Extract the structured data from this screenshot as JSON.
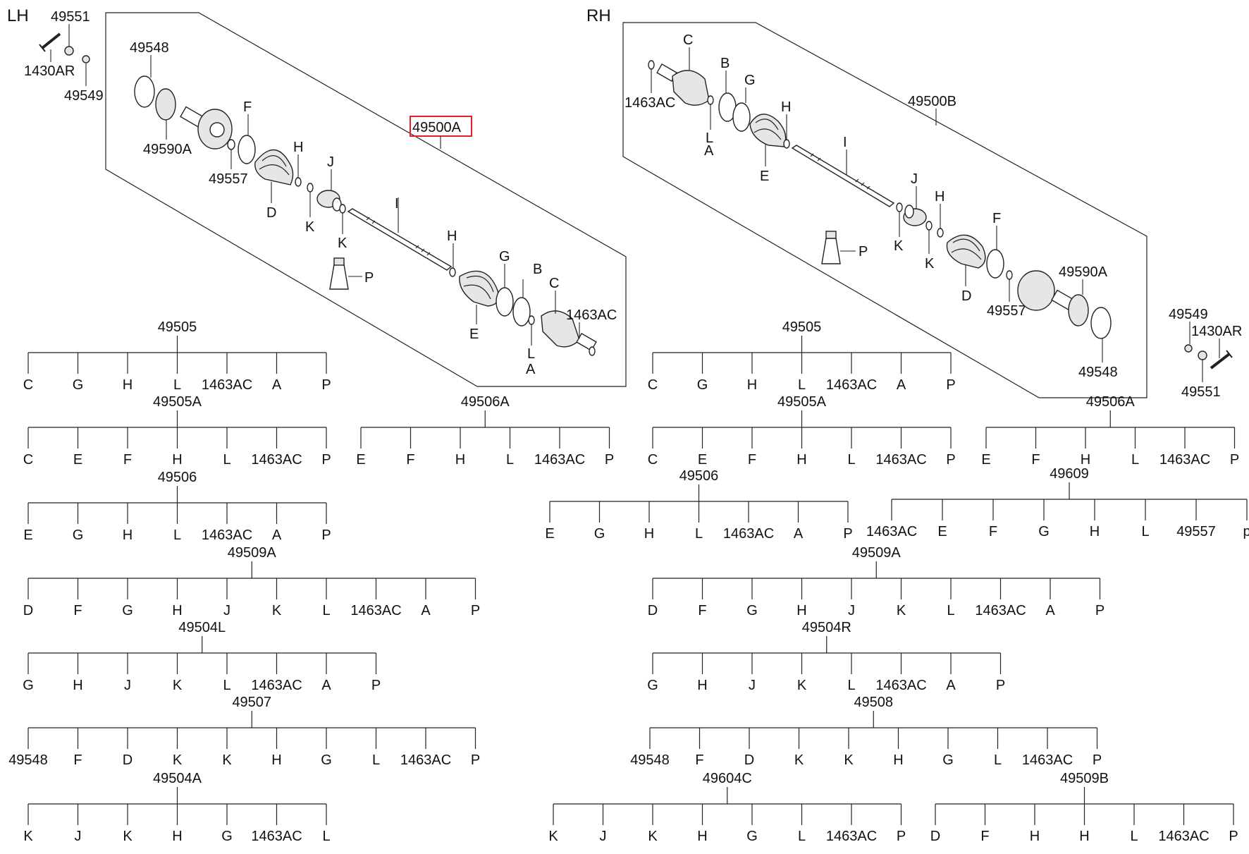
{
  "sides": {
    "lh": {
      "label": "LH",
      "assembly": "49500A",
      "callouts": [
        "49551",
        "1430AR",
        "49549",
        "49548",
        "49590A",
        "49557",
        "F",
        "H",
        "D",
        "J",
        "K",
        "K",
        "I",
        "P",
        "H",
        "G",
        "B",
        "C",
        "1463AC",
        "E",
        "L",
        "A"
      ]
    },
    "rh": {
      "label": "RH",
      "assembly": "49500B",
      "callouts": [
        "C",
        "B",
        "G",
        "1463AC",
        "L",
        "A",
        "H",
        "E",
        "I",
        "J",
        "H",
        "K",
        "K",
        "P",
        "F",
        "49590A",
        "D",
        "49557",
        "49548",
        "49549",
        "1430AR",
        "49551"
      ]
    }
  },
  "kit_trees": [
    {
      "code": "49505",
      "items": [
        "C",
        "G",
        "H",
        "L",
        "1463AC",
        "A",
        "P"
      ]
    },
    {
      "code": "49505A",
      "items": [
        "C",
        "E",
        "F",
        "H",
        "L",
        "1463AC",
        "P"
      ]
    },
    {
      "code": "49506A",
      "items": [
        "E",
        "F",
        "H",
        "L",
        "1463AC",
        "P"
      ]
    },
    {
      "code": "49506",
      "items": [
        "E",
        "G",
        "H",
        "L",
        "1463AC",
        "A",
        "P"
      ]
    },
    {
      "code": "49509A",
      "items": [
        "D",
        "F",
        "G",
        "H",
        "J",
        "K",
        "L",
        "1463AC",
        "A",
        "P"
      ]
    },
    {
      "code": "49504L",
      "items": [
        "G",
        "H",
        "J",
        "K",
        "L",
        "1463AC",
        "A",
        "P"
      ]
    },
    {
      "code": "49507",
      "items": [
        "49548",
        "F",
        "D",
        "K",
        "K",
        "H",
        "G",
        "L",
        "1463AC",
        "P"
      ]
    },
    {
      "code": "49504A",
      "items": [
        "K",
        "J",
        "K",
        "H",
        "G",
        "1463AC",
        "L"
      ]
    },
    {
      "code": "49505",
      "items": [
        "C",
        "G",
        "H",
        "L",
        "1463AC",
        "A",
        "P"
      ]
    },
    {
      "code": "49505A",
      "items": [
        "C",
        "E",
        "F",
        "H",
        "L",
        "1463AC",
        "P"
      ]
    },
    {
      "code": "49506A",
      "items": [
        "E",
        "F",
        "H",
        "L",
        "1463AC",
        "P"
      ]
    },
    {
      "code": "49506",
      "items": [
        "E",
        "G",
        "H",
        "L",
        "1463AC",
        "A",
        "P"
      ]
    },
    {
      "code": "49609",
      "items": [
        "1463AC",
        "E",
        "F",
        "G",
        "H",
        "L",
        "49557",
        "p"
      ]
    },
    {
      "code": "49509A",
      "items": [
        "D",
        "F",
        "G",
        "H",
        "J",
        "K",
        "L",
        "1463AC",
        "A",
        "P"
      ]
    },
    {
      "code": "49504R",
      "items": [
        "G",
        "H",
        "J",
        "K",
        "L",
        "1463AC",
        "A",
        "P"
      ]
    },
    {
      "code": "49508",
      "items": [
        "49548",
        "F",
        "D",
        "K",
        "K",
        "H",
        "G",
        "L",
        "1463AC",
        "P"
      ]
    },
    {
      "code": "49604C",
      "items": [
        "K",
        "J",
        "K",
        "H",
        "G",
        "L",
        "1463AC",
        "P"
      ]
    },
    {
      "code": "49509B",
      "items": [
        "D",
        "F",
        "H",
        "H",
        "L",
        "1463AC",
        "P"
      ]
    }
  ],
  "highlight_color": "#e0202a",
  "line_color": "#222222"
}
